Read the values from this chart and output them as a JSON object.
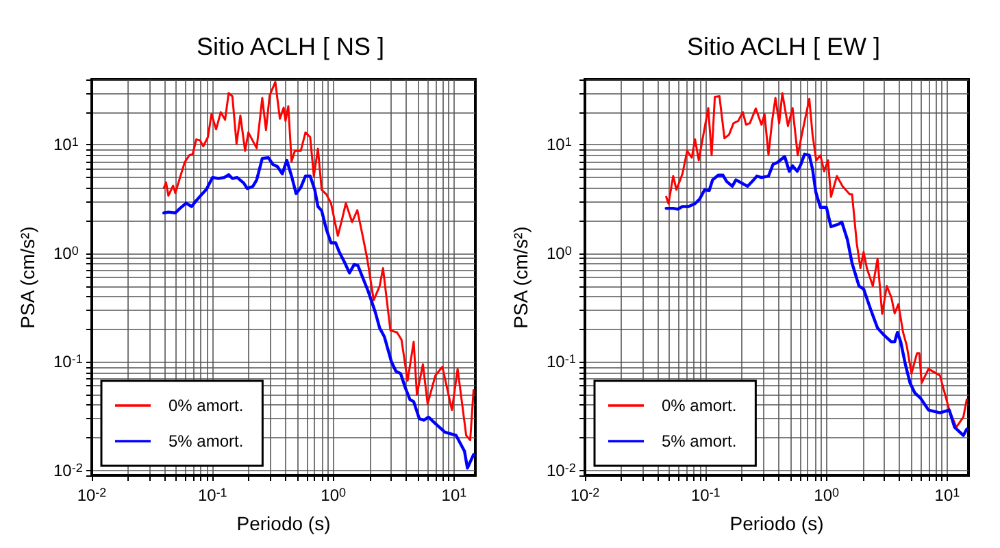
{
  "chart_data": [
    {
      "type": "line",
      "title": "Sitio ACLH [ NS ]",
      "xlabel": "Periodo (s)",
      "ylabel": "PSA (cm/s²)",
      "log": "xy",
      "grid": true,
      "legend": "bottom left",
      "xlim": [
        0.01,
        15
      ],
      "ylim": [
        0.009,
        40
      ],
      "xticks": [
        {
          "value": 0.01,
          "label": "10$^{-2}$"
        },
        {
          "value": 0.1,
          "label": "10$^{-1}$"
        },
        {
          "value": 1,
          "label": "10$^{0}$"
        },
        {
          "value": 10,
          "label": "10$^{1}$"
        }
      ],
      "yticks": [
        {
          "value": 0.01,
          "label": "10$^{-2}$"
        },
        {
          "value": 0.1,
          "label": "10$^{-1}$"
        },
        {
          "value": 1,
          "label": "10$^{0}$"
        },
        {
          "value": 10,
          "label": "10$^{1}$"
        }
      ],
      "series": [
        {
          "name": "0% amort.",
          "color": "#ff0000",
          "x": [
            0.0395,
            0.0412,
            0.0431,
            0.0471,
            0.0492,
            0.0538,
            0.0588,
            0.0642,
            0.0684,
            0.0734,
            0.0787,
            0.0838,
            0.0916,
            0.098,
            0.107,
            0.117,
            0.127,
            0.136,
            0.146,
            0.158,
            0.17,
            0.186,
            0.198,
            0.232,
            0.258,
            0.277,
            0.297,
            0.331,
            0.361,
            0.388,
            0.402,
            0.424,
            0.451,
            0.48,
            0.538,
            0.588,
            0.643,
            0.69,
            0.746,
            0.801,
            0.875,
            0.957,
            1.09,
            1.19,
            1.27,
            1.43,
            1.58,
            1.75,
            1.91,
            2.16,
            2.42,
            2.58,
            2.97,
            3.37,
            3.67,
            4.12,
            4.63,
            4.92,
            5.52,
            6.04,
            7.0,
            8.0,
            9.6,
            10.7,
            12.6,
            13.6,
            14.5
          ],
          "values": [
            4.0,
            4.5,
            3.4,
            4.2,
            3.6,
            5.0,
            6.9,
            8.0,
            8.2,
            11.2,
            11.0,
            9.7,
            11.8,
            19.2,
            13.9,
            20,
            17,
            30,
            28,
            10.2,
            18.6,
            8.8,
            13,
            9.3,
            27,
            13.7,
            28.4,
            38,
            17.4,
            22,
            16.6,
            22.7,
            7.0,
            8.8,
            8.8,
            13,
            11.8,
            5.15,
            9.2,
            3.85,
            3.5,
            2.9,
            1.45,
            2.13,
            2.9,
            1.94,
            2.5,
            1.45,
            0.89,
            0.37,
            0.5,
            0.73,
            0.195,
            0.187,
            0.16,
            0.067,
            0.153,
            0.05,
            0.095,
            0.041,
            0.075,
            0.09,
            0.036,
            0.086,
            0.021,
            0.019,
            0.055
          ]
        },
        {
          "name": "5% amort.",
          "color": "#0000ff",
          "x": [
            0.0395,
            0.0431,
            0.0492,
            0.0538,
            0.0604,
            0.0672,
            0.0734,
            0.0816,
            0.0891,
            0.1,
            0.112,
            0.125,
            0.136,
            0.146,
            0.16,
            0.181,
            0.194,
            0.216,
            0.232,
            0.258,
            0.29,
            0.316,
            0.345,
            0.378,
            0.412,
            0.451,
            0.492,
            0.538,
            0.588,
            0.643,
            0.702,
            0.746,
            0.801,
            0.875,
            0.957,
            1.045,
            1.12,
            1.25,
            1.36,
            1.49,
            1.6,
            1.75,
            1.94,
            2.22,
            2.42,
            2.65,
            3.03,
            3.3,
            3.61,
            3.94,
            4.31,
            4.63,
            5.15,
            5.62,
            6.14,
            7.0,
            8.4,
            10.4,
            12.2,
            12.9,
            14.5
          ],
          "values": [
            2.36,
            2.4,
            2.36,
            2.6,
            2.9,
            2.7,
            3.07,
            3.5,
            3.9,
            5.0,
            4.9,
            5.0,
            5.3,
            4.9,
            5.0,
            4.45,
            3.95,
            4.15,
            4.75,
            7.5,
            7.6,
            6.6,
            6.3,
            5.4,
            7.2,
            5.15,
            3.55,
            4.05,
            5.15,
            5.15,
            3.85,
            2.7,
            2.47,
            1.67,
            1.25,
            1.25,
            1.03,
            0.81,
            0.66,
            0.79,
            0.77,
            0.6,
            0.45,
            0.29,
            0.205,
            0.17,
            0.1,
            0.082,
            0.078,
            0.058,
            0.045,
            0.043,
            0.03,
            0.029,
            0.031,
            0.027,
            0.0225,
            0.021,
            0.015,
            0.0105,
            0.014
          ]
        }
      ]
    },
    {
      "type": "line",
      "title": "Sitio ACLH [ EW ]",
      "xlabel": "Periodo (s)",
      "ylabel": "PSA (cm/s²)",
      "log": "xy",
      "grid": true,
      "legend": "bottom left",
      "xlim": [
        0.01,
        15
      ],
      "ylim": [
        0.009,
        40
      ],
      "xticks": [
        {
          "value": 0.01,
          "label": "10$^{-2}$"
        },
        {
          "value": 0.1,
          "label": "10$^{-1}$"
        },
        {
          "value": 1,
          "label": "10$^{0}$"
        },
        {
          "value": 10,
          "label": "10$^{1}$"
        }
      ],
      "yticks": [
        {
          "value": 0.01,
          "label": "10$^{-2}$"
        },
        {
          "value": 0.1,
          "label": "10$^{-1}$"
        },
        {
          "value": 1,
          "label": "10$^{0}$"
        },
        {
          "value": 10,
          "label": "10$^{1}$"
        }
      ],
      "series": [
        {
          "name": "0% amort.",
          "color": "#ff0000",
          "x": [
            0.0471,
            0.0492,
            0.0538,
            0.0573,
            0.0642,
            0.0702,
            0.0767,
            0.0816,
            0.0876,
            0.0957,
            0.105,
            0.112,
            0.119,
            0.13,
            0.143,
            0.156,
            0.17,
            0.186,
            0.203,
            0.216,
            0.232,
            0.26,
            0.29,
            0.307,
            0.331,
            0.355,
            0.378,
            0.406,
            0.431,
            0.48,
            0.524,
            0.578,
            0.625,
            0.721,
            0.767,
            0.823,
            0.891,
            0.957,
            1.03,
            1.09,
            1.22,
            1.36,
            1.56,
            1.63,
            1.78,
            1.91,
            2.03,
            2.16,
            2.42,
            2.65,
            2.89,
            3.16,
            3.45,
            3.67,
            3.94,
            4.31,
            4.63,
            5.06,
            5.62,
            5.87,
            6.14,
            7.0,
            8.7,
            10.4,
            11.9,
            13.6,
            14.5
          ],
          "values": [
            3.32,
            2.87,
            5.15,
            3.85,
            5.4,
            8.8,
            7.6,
            11.2,
            7.2,
            12.4,
            21.8,
            8.0,
            27.6,
            28,
            11.5,
            12.4,
            15.8,
            16.6,
            20,
            15.3,
            15.8,
            21.6,
            15.3,
            19.2,
            8.1,
            16.6,
            27,
            15.8,
            29.9,
            14.9,
            21.8,
            8.0,
            12.4,
            26.5,
            12.4,
            7.2,
            8.0,
            5.7,
            7.2,
            3.32,
            5.15,
            4.15,
            3.5,
            3.5,
            1.25,
            0.73,
            1.03,
            0.73,
            0.5,
            0.89,
            0.277,
            0.5,
            0.39,
            0.28,
            0.34,
            0.187,
            0.14,
            0.078,
            0.12,
            0.12,
            0.064,
            0.086,
            0.075,
            0.036,
            0.025,
            0.031,
            0.045
          ]
        },
        {
          "name": "5% amort.",
          "color": "#0000ff",
          "x": [
            0.0471,
            0.0538,
            0.0588,
            0.0642,
            0.0721,
            0.0816,
            0.0891,
            0.098,
            0.107,
            0.114,
            0.127,
            0.139,
            0.149,
            0.166,
            0.178,
            0.198,
            0.222,
            0.243,
            0.265,
            0.29,
            0.331,
            0.361,
            0.394,
            0.451,
            0.492,
            0.524,
            0.573,
            0.614,
            0.659,
            0.721,
            0.767,
            0.817,
            0.891,
            1.0,
            1.09,
            1.25,
            1.34,
            1.49,
            1.63,
            1.86,
            2.03,
            2.32,
            2.65,
            2.97,
            3.45,
            3.67,
            3.87,
            4.12,
            4.51,
            4.92,
            5.38,
            6.04,
            7.0,
            8.7,
            10.4,
            11.5,
            13.6,
            14.5
          ],
          "values": [
            2.6,
            2.6,
            2.55,
            2.7,
            2.7,
            2.87,
            3.16,
            3.85,
            3.8,
            4.75,
            5.25,
            5.25,
            4.6,
            4.15,
            4.75,
            4.45,
            4.15,
            4.6,
            5.15,
            5.0,
            5.15,
            6.6,
            6.9,
            7.8,
            5.7,
            6.4,
            5.7,
            6.6,
            8.2,
            8.0,
            5.95,
            3.65,
            2.65,
            2.65,
            1.76,
            1.85,
            1.94,
            1.34,
            0.81,
            0.5,
            0.47,
            0.305,
            0.205,
            0.178,
            0.153,
            0.153,
            0.187,
            0.153,
            0.094,
            0.064,
            0.052,
            0.046,
            0.036,
            0.034,
            0.036,
            0.025,
            0.021,
            0.024
          ]
        }
      ]
    }
  ]
}
